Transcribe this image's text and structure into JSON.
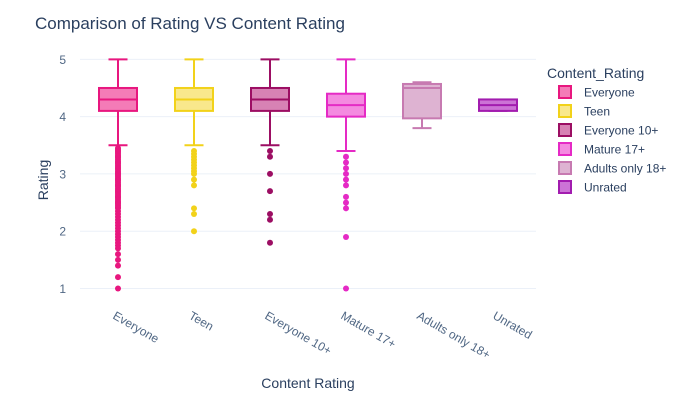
{
  "chart_data": {
    "type": "box",
    "title": "Comparison of Rating VS Content Rating",
    "xlabel": "Content Rating",
    "ylabel": "Rating",
    "ylim": [
      0.8,
      5.25
    ],
    "yticks": [
      1,
      2,
      3,
      4,
      5
    ],
    "grid": true,
    "legend_title": "Content_Rating",
    "legend_position": "right",
    "categories": [
      "Everyone",
      "Teen",
      "Everyone 10+",
      "Mature 17+",
      "Adults only 18+",
      "Unrated"
    ],
    "series": [
      {
        "name": "Everyone",
        "color": "#e8177f",
        "fill": "#f47bb7",
        "whisker_low": 3.5,
        "q1": 4.1,
        "median": 4.3,
        "q3": 4.5,
        "whisker_high": 5.0,
        "outliers": [
          3.45,
          3.42,
          3.4,
          3.38,
          3.35,
          3.32,
          3.3,
          3.28,
          3.25,
          3.22,
          3.2,
          3.18,
          3.15,
          3.12,
          3.1,
          3.08,
          3.05,
          3.02,
          3.0,
          2.98,
          2.95,
          2.92,
          2.9,
          2.88,
          2.85,
          2.82,
          2.8,
          2.78,
          2.75,
          2.72,
          2.7,
          2.68,
          2.65,
          2.62,
          2.6,
          2.58,
          2.55,
          2.52,
          2.5,
          2.48,
          2.45,
          2.42,
          2.4,
          2.35,
          2.3,
          2.25,
          2.2,
          2.15,
          2.1,
          2.05,
          2.0,
          1.95,
          1.9,
          1.85,
          1.8,
          1.75,
          1.7,
          1.6,
          1.5,
          1.4,
          1.2,
          1.0
        ]
      },
      {
        "name": "Teen",
        "color": "#f2d21a",
        "fill": "#f9e88c",
        "whisker_low": 3.5,
        "q1": 4.1,
        "median": 4.3,
        "q3": 4.5,
        "whisker_high": 5.0,
        "outliers": [
          3.4,
          3.35,
          3.3,
          3.25,
          3.2,
          3.15,
          3.1,
          3.05,
          3.0,
          2.9,
          2.8,
          2.4,
          2.3,
          2.0
        ]
      },
      {
        "name": "Everyone 10+",
        "color": "#9c0e63",
        "fill": "#d782b4",
        "whisker_low": 3.5,
        "q1": 4.1,
        "median": 4.3,
        "q3": 4.5,
        "whisker_high": 5.0,
        "outliers": [
          3.4,
          3.3,
          3.0,
          2.7,
          2.3,
          2.2,
          1.8
        ]
      },
      {
        "name": "Mature 17+",
        "color": "#e52ac5",
        "fill": "#f48ae0",
        "whisker_low": 3.4,
        "q1": 4.0,
        "median": 4.2,
        "q3": 4.4,
        "whisker_high": 5.0,
        "outliers": [
          3.3,
          3.2,
          3.1,
          3.0,
          2.9,
          2.8,
          2.6,
          2.5,
          2.4,
          1.9,
          1.0
        ]
      },
      {
        "name": "Adults only 18+",
        "color": "#c77ab1",
        "fill": "#deb3d2",
        "whisker_low": 3.8,
        "q1": 3.97,
        "median": 4.5,
        "q3": 4.57,
        "whisker_high": 4.6,
        "outliers": []
      },
      {
        "name": "Unrated",
        "color": "#a21caf",
        "fill": "#cc73d6",
        "whisker_low": 4.1,
        "q1": 4.1,
        "median": 4.2,
        "q3": 4.3,
        "whisker_high": 4.3,
        "outliers": []
      }
    ]
  }
}
